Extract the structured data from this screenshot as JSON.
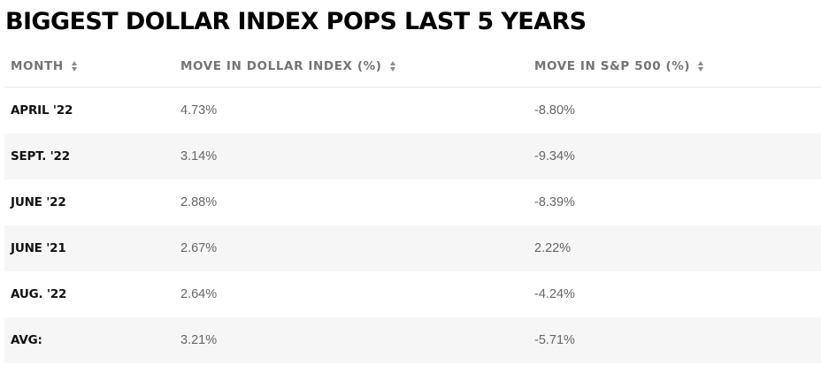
{
  "title": "BIGGEST DOLLAR INDEX POPS LAST 5 YEARS",
  "table": {
    "columns": [
      {
        "label": "MONTH",
        "icon": "sort-icon"
      },
      {
        "label": "MOVE IN DOLLAR INDEX (%)",
        "icon": "sort-icon"
      },
      {
        "label": "MOVE IN S&P 500 (%)",
        "icon": "sort-icon"
      }
    ],
    "rows": [
      {
        "month": "APRIL '22",
        "dollar_index": "4.73%",
        "sp500": "-8.80%"
      },
      {
        "month": "SEPT. '22",
        "dollar_index": "3.14%",
        "sp500": "-9.34%"
      },
      {
        "month": "JUNE '22",
        "dollar_index": "2.88%",
        "sp500": "-8.39%"
      },
      {
        "month": "JUNE '21",
        "dollar_index": "2.67%",
        "sp500": "2.22%"
      },
      {
        "month": "AUG. '22",
        "dollar_index": "2.64%",
        "sp500": "-4.24%"
      },
      {
        "month": "AVG:",
        "dollar_index": "3.21%",
        "sp500": "-5.71%"
      }
    ],
    "alt_row_color": "#f6f6f6",
    "header_color": "#747474"
  }
}
